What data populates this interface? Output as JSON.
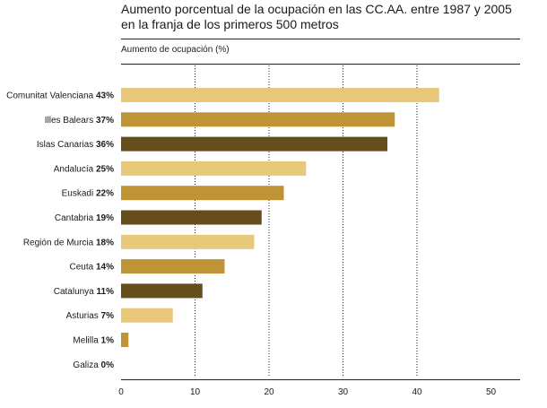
{
  "chart_data": {
    "type": "bar",
    "orientation": "horizontal",
    "title_lines": [
      "Aumento porcentual de la ocupación en las CC.AA. entre 1987 y 2005",
      "en la franja de los primeros 500 metros"
    ],
    "ylabel": "Aumento de ocupación (%)",
    "categories": [
      "Comunitat Valenciana",
      "Illes Balears",
      "Islas Canarias",
      "Andalucía",
      "Euskadi",
      "Cantabria",
      "Región de Murcia",
      "Ceuta",
      "Catalunya",
      "Asturias",
      "Melilla",
      "Galiza"
    ],
    "values": [
      43,
      37,
      36,
      25,
      22,
      19,
      18,
      14,
      11,
      7,
      1,
      0
    ],
    "value_labels": [
      "43%",
      "37%",
      "36%",
      "25%",
      "22%",
      "19%",
      "18%",
      "14%",
      "11%",
      "7%",
      "1%",
      "0%"
    ],
    "xlim": [
      0,
      54
    ],
    "xticks": [
      0,
      10,
      20,
      30,
      40,
      50
    ],
    "grid": "dotted vertical at 10, 20, 30, 40",
    "colors": [
      "#e8c87a",
      "#bf9437",
      "#654d1c"
    ]
  }
}
